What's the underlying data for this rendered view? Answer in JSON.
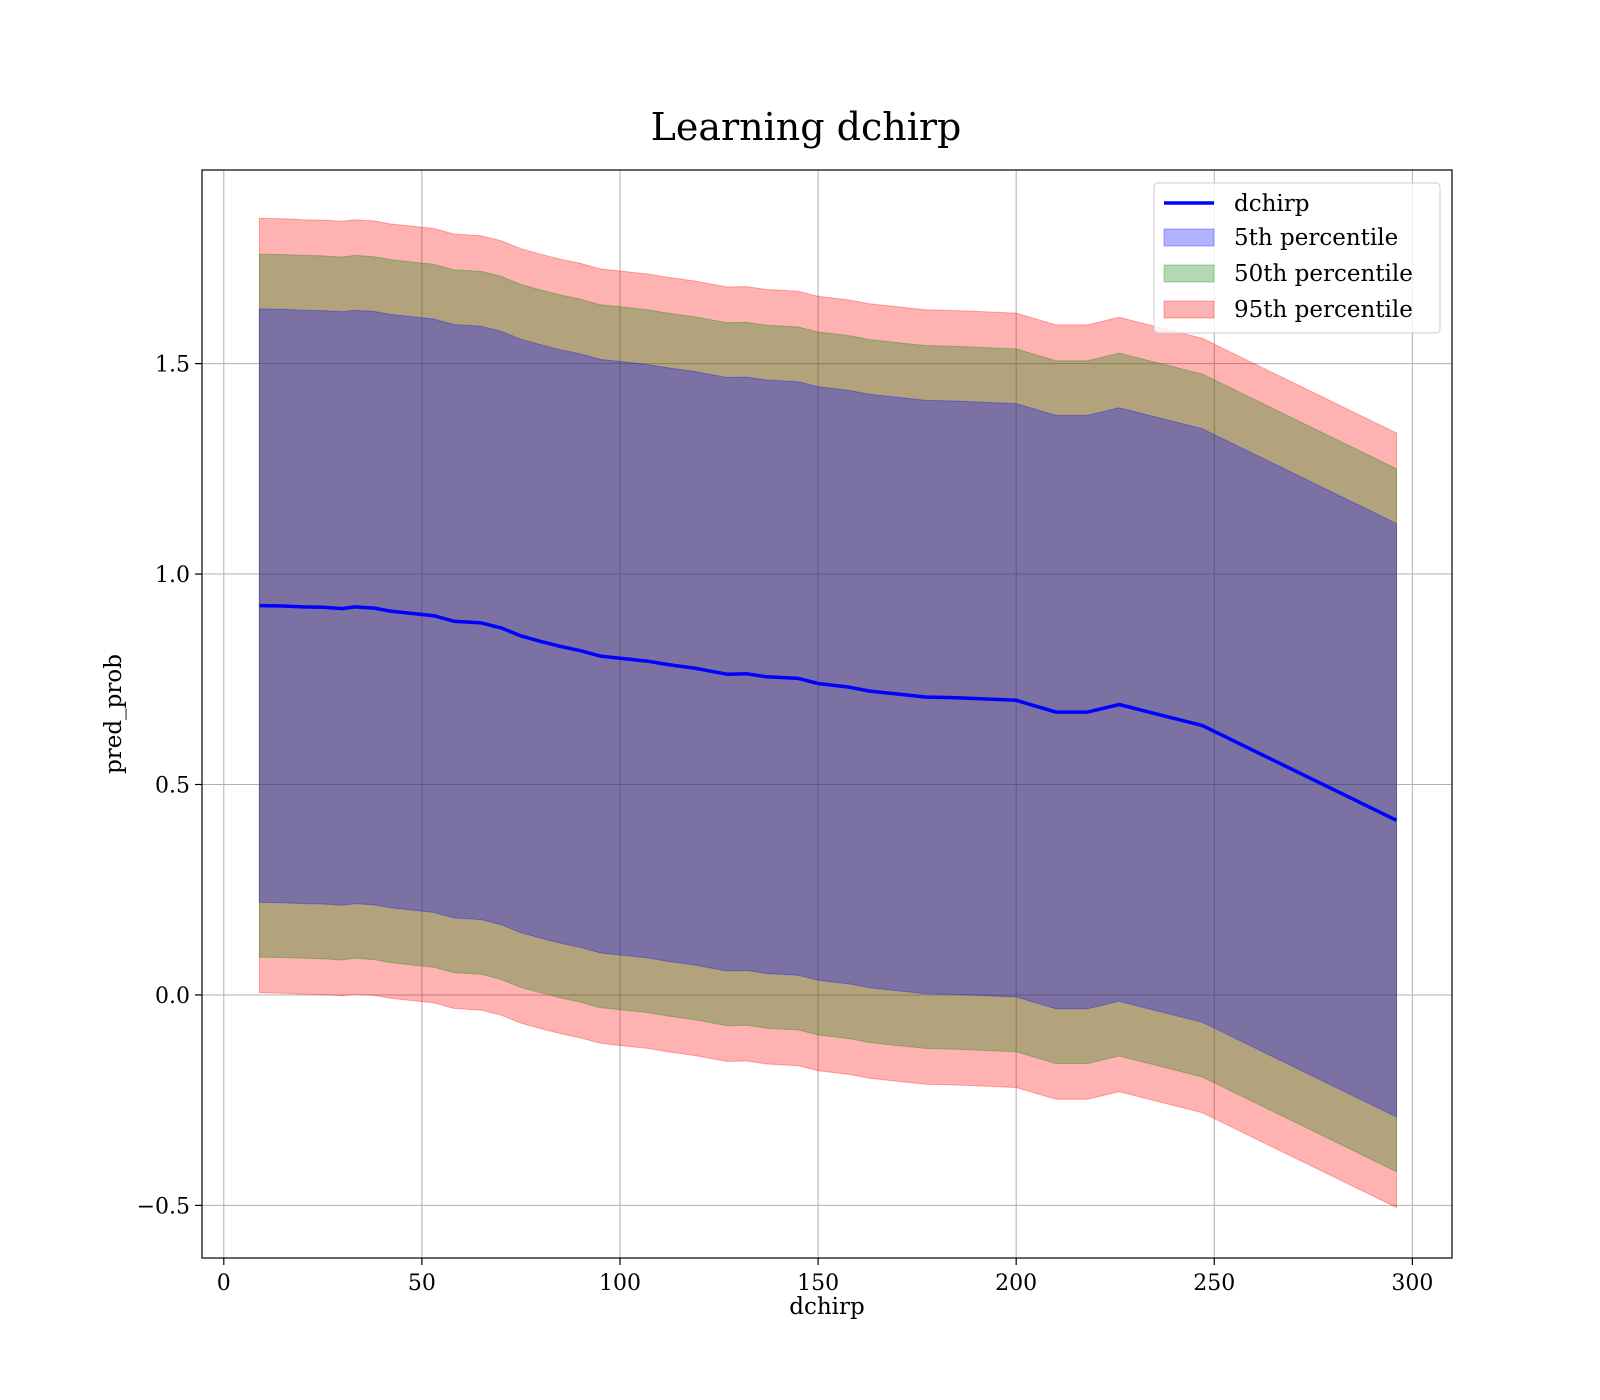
{
  "chart_data": {
    "type": "line",
    "title": "Learning dchirp",
    "xlabel": "dchirp",
    "ylabel": "pred_prob",
    "xlim": [
      -5.5,
      310
    ],
    "ylim": [
      -0.625,
      1.96
    ],
    "xticks": [
      0,
      50,
      100,
      150,
      200,
      250,
      300
    ],
    "xtick_labels": [
      "0",
      "50",
      "100",
      "150",
      "200",
      "250",
      "300"
    ],
    "yticks": [
      -0.5,
      0.0,
      0.5,
      1.0,
      1.5
    ],
    "ytick_labels": [
      "−0.5",
      "0.0",
      "0.5",
      "1.0",
      "1.5"
    ],
    "grid": true,
    "legend_position": "top-right",
    "colors": {
      "line": "#0000ff",
      "band_5": "#0000ff",
      "band_50": "#008000",
      "band_95": "#ff0000",
      "grid": "#b0b0b0"
    },
    "x": [
      9,
      15,
      20,
      25,
      30,
      33,
      38,
      42,
      48,
      53,
      58,
      65,
      70,
      75,
      80,
      85,
      90,
      95,
      100,
      107,
      112,
      119,
      127,
      132,
      137,
      145,
      150,
      158,
      163,
      170,
      177,
      185,
      200,
      210,
      218,
      226,
      247,
      296
    ],
    "series": [
      {
        "name": "dchirp",
        "values": [
          0.925,
          0.924,
          0.922,
          0.921,
          0.918,
          0.922,
          0.919,
          0.912,
          0.906,
          0.901,
          0.888,
          0.884,
          0.872,
          0.853,
          0.84,
          0.828,
          0.818,
          0.805,
          0.8,
          0.793,
          0.785,
          0.776,
          0.762,
          0.763,
          0.756,
          0.752,
          0.74,
          0.731,
          0.722,
          0.715,
          0.708,
          0.706,
          0.7,
          0.672,
          0.672,
          0.69,
          0.64,
          0.415
        ]
      }
    ],
    "bands": [
      {
        "name": "5th percentile",
        "lower": [
          0.22,
          0.219,
          0.217,
          0.216,
          0.213,
          0.217,
          0.214,
          0.207,
          0.201,
          0.196,
          0.183,
          0.179,
          0.167,
          0.148,
          0.135,
          0.123,
          0.113,
          0.1,
          0.095,
          0.088,
          0.08,
          0.071,
          0.057,
          0.058,
          0.051,
          0.047,
          0.035,
          0.026,
          0.017,
          0.01,
          0.003,
          0.001,
          -0.005,
          -0.033,
          -0.033,
          -0.015,
          -0.065,
          -0.29
        ],
        "upper": [
          1.63,
          1.629,
          1.627,
          1.626,
          1.623,
          1.627,
          1.624,
          1.617,
          1.611,
          1.606,
          1.593,
          1.589,
          1.577,
          1.558,
          1.545,
          1.533,
          1.523,
          1.51,
          1.505,
          1.498,
          1.49,
          1.481,
          1.467,
          1.468,
          1.461,
          1.457,
          1.445,
          1.436,
          1.427,
          1.42,
          1.413,
          1.411,
          1.405,
          1.377,
          1.377,
          1.395,
          1.345,
          1.12
        ]
      },
      {
        "name": "50th percentile",
        "lower": [
          0.09,
          0.089,
          0.087,
          0.086,
          0.083,
          0.087,
          0.084,
          0.077,
          0.071,
          0.066,
          0.053,
          0.049,
          0.037,
          0.018,
          0.005,
          -0.007,
          -0.017,
          -0.03,
          -0.035,
          -0.042,
          -0.05,
          -0.059,
          -0.073,
          -0.072,
          -0.079,
          -0.083,
          -0.095,
          -0.104,
          -0.113,
          -0.12,
          -0.127,
          -0.129,
          -0.135,
          -0.163,
          -0.163,
          -0.145,
          -0.195,
          -0.42
        ],
        "upper": [
          1.76,
          1.759,
          1.757,
          1.756,
          1.753,
          1.757,
          1.754,
          1.747,
          1.741,
          1.736,
          1.723,
          1.719,
          1.707,
          1.688,
          1.675,
          1.663,
          1.653,
          1.64,
          1.635,
          1.628,
          1.62,
          1.611,
          1.597,
          1.598,
          1.591,
          1.587,
          1.575,
          1.566,
          1.557,
          1.55,
          1.543,
          1.541,
          1.535,
          1.507,
          1.507,
          1.525,
          1.475,
          1.25
        ]
      },
      {
        "name": "95th percentile",
        "lower": [
          0.005,
          0.004,
          0.002,
          0.001,
          -0.002,
          0.002,
          -0.001,
          -0.008,
          -0.014,
          -0.019,
          -0.032,
          -0.036,
          -0.048,
          -0.067,
          -0.08,
          -0.092,
          -0.102,
          -0.115,
          -0.12,
          -0.127,
          -0.135,
          -0.144,
          -0.158,
          -0.157,
          -0.164,
          -0.168,
          -0.18,
          -0.189,
          -0.198,
          -0.205,
          -0.212,
          -0.214,
          -0.22,
          -0.248,
          -0.248,
          -0.23,
          -0.28,
          -0.505
        ],
        "upper": [
          1.845,
          1.844,
          1.842,
          1.841,
          1.838,
          1.842,
          1.839,
          1.832,
          1.826,
          1.821,
          1.808,
          1.804,
          1.792,
          1.773,
          1.76,
          1.748,
          1.738,
          1.725,
          1.72,
          1.713,
          1.705,
          1.696,
          1.682,
          1.683,
          1.676,
          1.672,
          1.66,
          1.651,
          1.642,
          1.635,
          1.628,
          1.626,
          1.62,
          1.592,
          1.592,
          1.61,
          1.56,
          1.335
        ]
      }
    ],
    "legend": [
      "dchirp",
      "5th percentile",
      "50th percentile",
      "95th percentile"
    ]
  }
}
